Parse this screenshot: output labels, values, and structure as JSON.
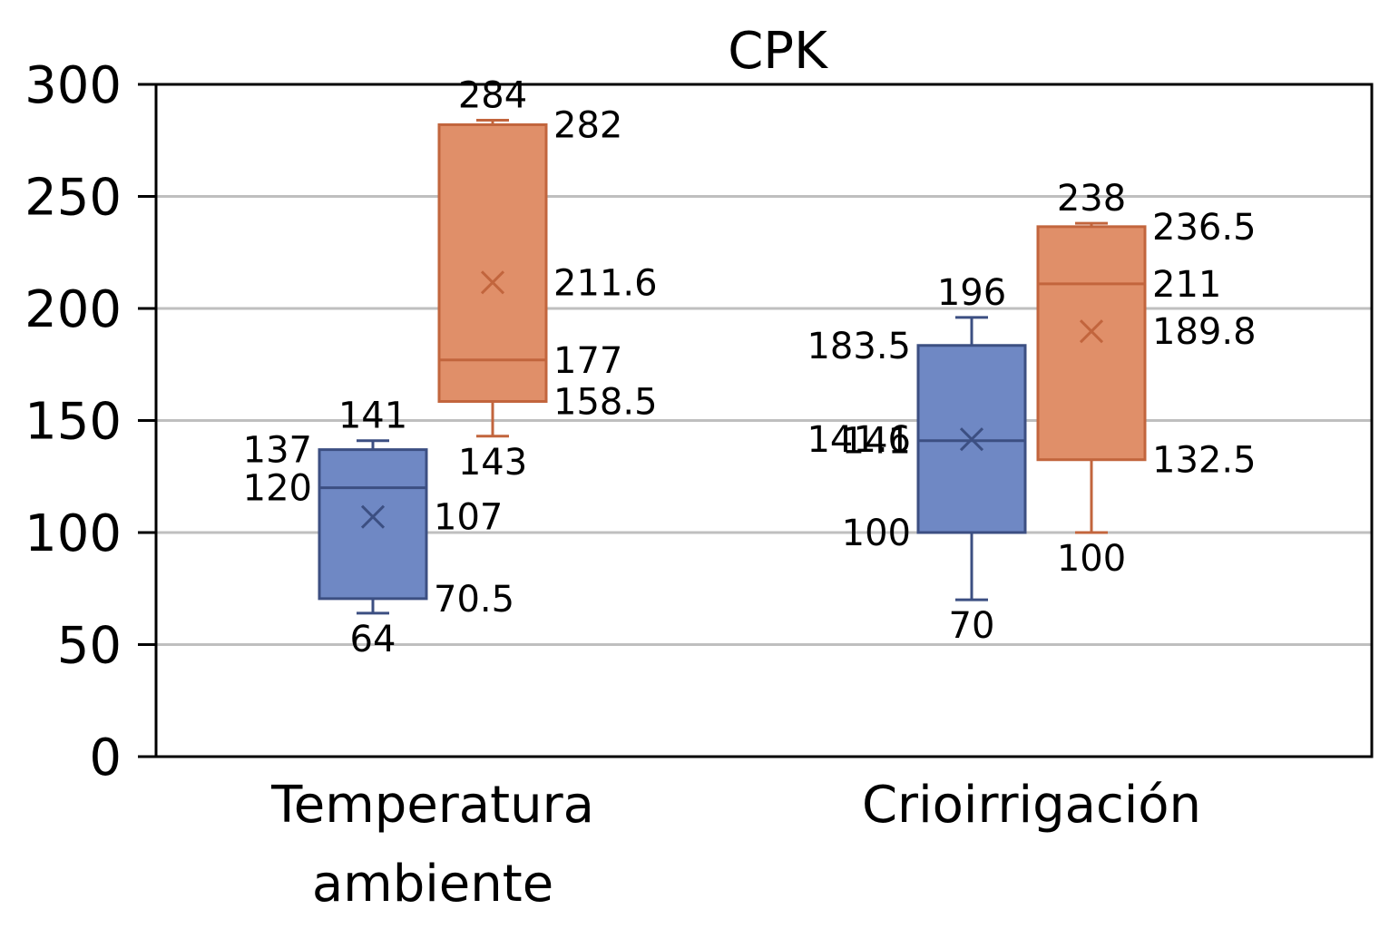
{
  "chart_data": {
    "type": "boxplot",
    "title": "CPK",
    "xlabel": "",
    "ylabel": "",
    "ylim": [
      0,
      300
    ],
    "yticks": [
      0,
      50,
      100,
      150,
      200,
      250,
      300
    ],
    "grid": true,
    "categories": [
      {
        "lines": [
          "Temperatura",
          "ambiente"
        ]
      },
      {
        "lines": [
          "Crioirrigación"
        ]
      }
    ],
    "series": [
      {
        "name": "series-1",
        "fill": "#6F88C4",
        "stroke": "#3C4F82",
        "boxes": [
          {
            "min": 64,
            "q1": 70.5,
            "median": 120,
            "q3": 137,
            "max": 141,
            "mean": 107
          },
          {
            "min": 70,
            "q1": 100,
            "median": 141,
            "q3": 183.5,
            "max": 196,
            "mean": 141.6
          }
        ]
      },
      {
        "name": "series-2",
        "fill": "#E08F69",
        "stroke": "#C2653D",
        "boxes": [
          {
            "min": 143,
            "q1": 158.5,
            "median": 177,
            "q3": 282,
            "max": 284,
            "mean": 211.6
          },
          {
            "min": 100,
            "q1": 132.5,
            "median": 211,
            "q3": 236.5,
            "max": 238,
            "mean": 189.8
          }
        ]
      }
    ],
    "labels": [
      [
        {
          "text": "141",
          "value": 141,
          "pos": "top"
        },
        {
          "text": "137",
          "value": 137,
          "pos": "left"
        },
        {
          "text": "120",
          "value": 120,
          "pos": "left"
        },
        {
          "text": "107",
          "value": 107,
          "pos": "right"
        },
        {
          "text": "70.5",
          "value": 70.5,
          "pos": "right"
        },
        {
          "text": "64",
          "value": 64,
          "pos": "bottom"
        }
      ],
      [
        {
          "text": "284",
          "value": 284,
          "pos": "top"
        },
        {
          "text": "282",
          "value": 282,
          "pos": "right"
        },
        {
          "text": "211.6",
          "value": 211.6,
          "pos": "right"
        },
        {
          "text": "177",
          "value": 177,
          "pos": "right"
        },
        {
          "text": "158.5",
          "value": 158.5,
          "pos": "right"
        },
        {
          "text": "143",
          "value": 143,
          "pos": "bottom"
        }
      ],
      [
        {
          "text": "196",
          "value": 196,
          "pos": "top"
        },
        {
          "text": "183.5",
          "value": 183.5,
          "pos": "left"
        },
        {
          "text": "141.6",
          "value": 141.6,
          "pos": "left"
        },
        {
          "text": "141",
          "value": 141,
          "pos": "left"
        },
        {
          "text": "100",
          "value": 100,
          "pos": "left"
        },
        {
          "text": "70",
          "value": 70,
          "pos": "bottom"
        }
      ],
      [
        {
          "text": "238",
          "value": 238,
          "pos": "top"
        },
        {
          "text": "236.5",
          "value": 236.5,
          "pos": "right"
        },
        {
          "text": "211",
          "value": 211,
          "pos": "right"
        },
        {
          "text": "189.8",
          "value": 189.8,
          "pos": "right"
        },
        {
          "text": "132.5",
          "value": 132.5,
          "pos": "right"
        },
        {
          "text": "100",
          "value": 100,
          "pos": "bottom"
        }
      ]
    ]
  }
}
